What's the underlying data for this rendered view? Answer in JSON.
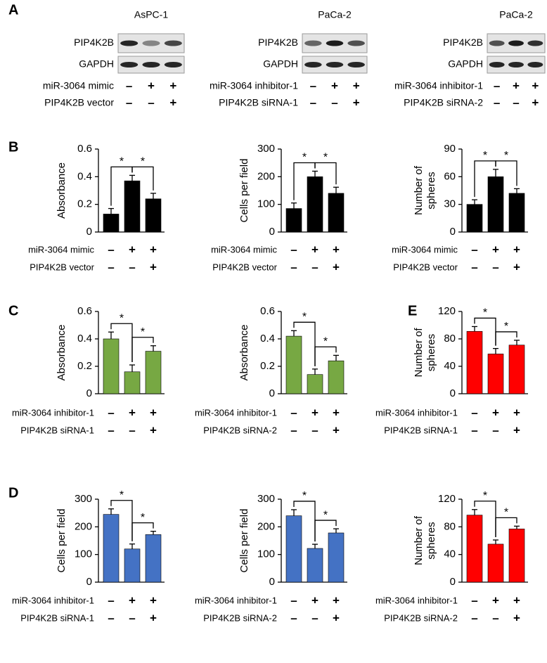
{
  "panel_labels": [
    "A",
    "B",
    "C",
    "D",
    "E"
  ],
  "blots": [
    {
      "title": "AsPC-1",
      "rows": [
        "PIP4K2B",
        "GAPDH"
      ],
      "conditions": [
        {
          "name": "miR-3064 mimic",
          "signs": [
            "–",
            "+",
            "+"
          ]
        },
        {
          "name": "PIP4K2B vector",
          "signs": [
            "–",
            "–",
            "+"
          ]
        }
      ]
    },
    {
      "title": "PaCa-2",
      "rows": [
        "PIP4K2B",
        "GAPDH"
      ],
      "conditions": [
        {
          "name": "miR-3064 inhibitor-1",
          "signs": [
            "–",
            "+",
            "+"
          ]
        },
        {
          "name": "PIP4K2B siRNA-1",
          "signs": [
            "–",
            "–",
            "+"
          ]
        }
      ]
    },
    {
      "title": "PaCa-2",
      "rows": [
        "PIP4K2B",
        "GAPDH"
      ],
      "conditions": [
        {
          "name": "miR-3064 inhibitor-1",
          "signs": [
            "–",
            "+",
            "+"
          ]
        },
        {
          "name": "PIP4K2B siRNA-2",
          "signs": [
            "–",
            "–",
            "+"
          ]
        }
      ]
    }
  ],
  "chart_data": [
    {
      "type": "bar",
      "y_label": [
        "Absorbance"
      ],
      "ylim": [
        0,
        0.6
      ],
      "yticks": [
        0,
        0.2,
        0.4,
        0.6
      ],
      "values": [
        0.13,
        0.37,
        0.24
      ],
      "errors": [
        0.04,
        0.04,
        0.04
      ],
      "color": "#000000",
      "annotations": [
        "*",
        "*"
      ],
      "conditions": [
        {
          "name": "miR-3064 mimic",
          "signs": [
            "–",
            "+",
            "+"
          ]
        },
        {
          "name": "PIP4K2B vector",
          "signs": [
            "–",
            "–",
            "+"
          ]
        }
      ]
    },
    {
      "type": "bar",
      "y_label": [
        "Cells per field"
      ],
      "ylim": [
        0,
        300
      ],
      "yticks": [
        0,
        100,
        200,
        300
      ],
      "values": [
        85,
        200,
        140
      ],
      "errors": [
        20,
        20,
        22
      ],
      "color": "#000000",
      "annotations": [
        "*",
        "*"
      ],
      "conditions": [
        {
          "name": "miR-3064 mimic",
          "signs": [
            "–",
            "+",
            "+"
          ]
        },
        {
          "name": "PIP4K2B vector",
          "signs": [
            "–",
            "–",
            "+"
          ]
        }
      ]
    },
    {
      "type": "bar",
      "y_label": [
        "Number of",
        "spheres"
      ],
      "ylim": [
        0,
        90
      ],
      "yticks": [
        0,
        30,
        60,
        90
      ],
      "values": [
        30,
        60,
        42
      ],
      "errors": [
        5,
        8,
        5
      ],
      "color": "#000000",
      "annotations": [
        "*",
        "*"
      ],
      "conditions": [
        {
          "name": "miR-3064 mimic",
          "signs": [
            "–",
            "+",
            "+"
          ]
        },
        {
          "name": "PIP4K2B vector",
          "signs": [
            "–",
            "–",
            "+"
          ]
        }
      ]
    },
    {
      "type": "bar",
      "y_label": [
        "Absorbance"
      ],
      "ylim": [
        0,
        0.6
      ],
      "yticks": [
        0,
        0.2,
        0.4,
        0.6
      ],
      "values": [
        0.4,
        0.16,
        0.31
      ],
      "errors": [
        0.05,
        0.05,
        0.04
      ],
      "color": "#77a843",
      "annotations": [
        "*",
        "*"
      ],
      "conditions": [
        {
          "name": "miR-3064 inhibitor-1",
          "signs": [
            "–",
            "+",
            "+"
          ]
        },
        {
          "name": "PIP4K2B siRNA-1",
          "signs": [
            "–",
            "–",
            "+"
          ]
        }
      ]
    },
    {
      "type": "bar",
      "y_label": [
        "Absorbance"
      ],
      "ylim": [
        0,
        0.6
      ],
      "yticks": [
        0,
        0.2,
        0.4,
        0.6
      ],
      "values": [
        0.42,
        0.14,
        0.24
      ],
      "errors": [
        0.04,
        0.04,
        0.04
      ],
      "color": "#77a843",
      "annotations": [
        "*",
        "*"
      ],
      "conditions": [
        {
          "name": "miR-3064 inhibitor-1",
          "signs": [
            "–",
            "+",
            "+"
          ]
        },
        {
          "name": "PIP4K2B siRNA-2",
          "signs": [
            "–",
            "–",
            "+"
          ]
        }
      ]
    },
    {
      "type": "bar",
      "y_label": [
        "Number of",
        "spheres"
      ],
      "ylim": [
        0,
        120
      ],
      "yticks": [
        0,
        40,
        80,
        120
      ],
      "values": [
        91,
        58,
        71
      ],
      "errors": [
        7,
        8,
        7
      ],
      "color": "#ff0000",
      "annotations": [
        "*",
        "*"
      ],
      "conditions": [
        {
          "name": "miR-3064 inhibitor-1",
          "signs": [
            "–",
            "+",
            "+"
          ]
        },
        {
          "name": "PIP4K2B siRNA-1",
          "signs": [
            "–",
            "–",
            "+"
          ]
        }
      ]
    },
    {
      "type": "bar",
      "y_label": [
        "Cells per field"
      ],
      "ylim": [
        0,
        300
      ],
      "yticks": [
        0,
        100,
        200,
        300
      ],
      "values": [
        245,
        120,
        172
      ],
      "errors": [
        20,
        18,
        12
      ],
      "color": "#4472c4",
      "annotations": [
        "*",
        "*"
      ],
      "conditions": [
        {
          "name": "miR-3064 inhibitor-1",
          "signs": [
            "–",
            "+",
            "+"
          ]
        },
        {
          "name": "PIP4K2B siRNA-1",
          "signs": [
            "–",
            "–",
            "+"
          ]
        }
      ]
    },
    {
      "type": "bar",
      "y_label": [
        "Cells per field"
      ],
      "ylim": [
        0,
        300
      ],
      "yticks": [
        0,
        100,
        200,
        300
      ],
      "values": [
        240,
        122,
        178
      ],
      "errors": [
        22,
        15,
        15
      ],
      "color": "#4472c4",
      "annotations": [
        "*",
        "*"
      ],
      "conditions": [
        {
          "name": "miR-3064 inhibitor-1",
          "signs": [
            "–",
            "+",
            "+"
          ]
        },
        {
          "name": "PIP4K2B siRNA-2",
          "signs": [
            "–",
            "–",
            "+"
          ]
        }
      ]
    },
    {
      "type": "bar",
      "y_label": [
        "Number of",
        "spheres"
      ],
      "ylim": [
        0,
        120
      ],
      "yticks": [
        0,
        40,
        80,
        120
      ],
      "values": [
        97,
        55,
        77
      ],
      "errors": [
        8,
        6,
        4
      ],
      "color": "#ff0000",
      "annotations": [
        "*",
        "*"
      ],
      "conditions": [
        {
          "name": "miR-3064 inhibitor-1",
          "signs": [
            "–",
            "+",
            "+"
          ]
        },
        {
          "name": "PIP4K2B siRNA-2",
          "signs": [
            "–",
            "–",
            "+"
          ]
        }
      ]
    }
  ]
}
